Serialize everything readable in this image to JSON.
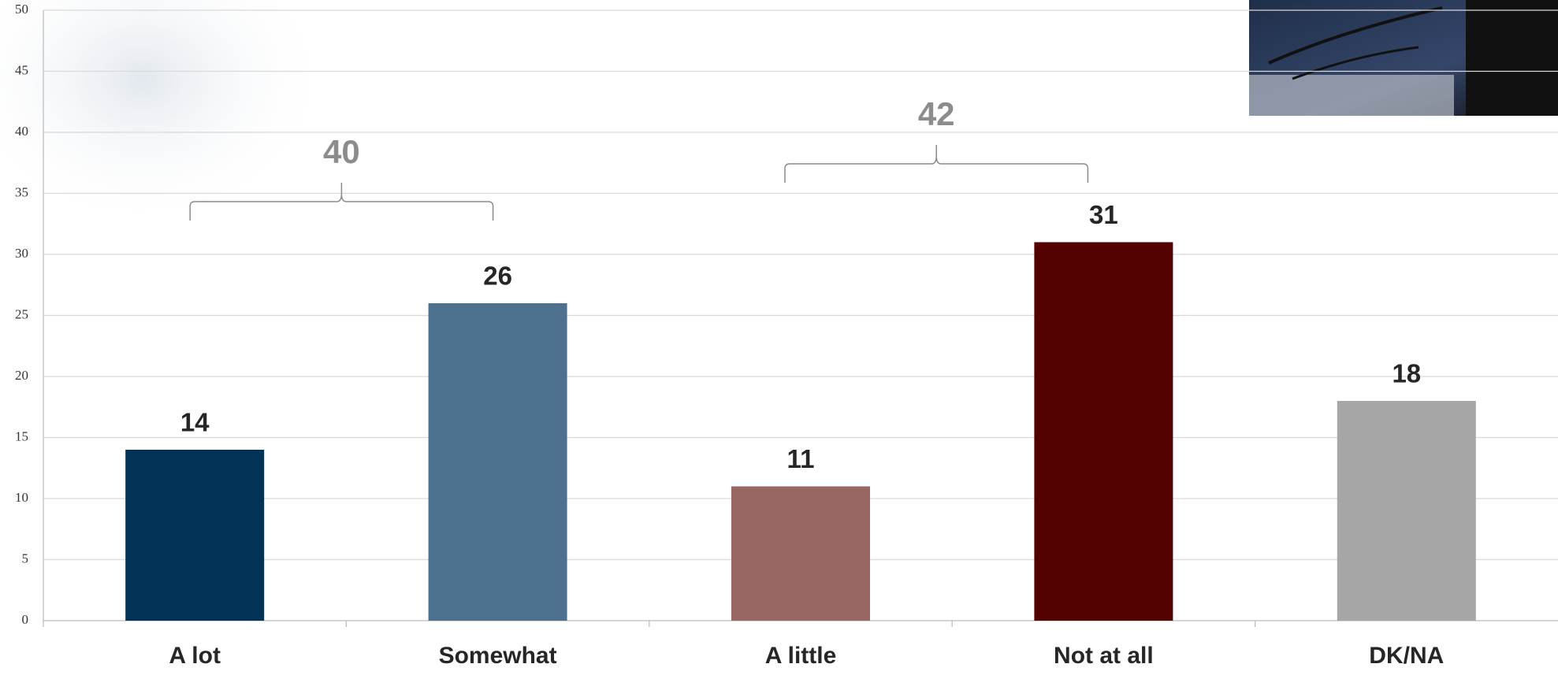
{
  "chart_data": {
    "type": "bar",
    "categories": [
      "A lot",
      "Somewhat",
      "A little",
      "Not at all",
      "DK/NA"
    ],
    "values": [
      14,
      26,
      11,
      31,
      18
    ],
    "colors": [
      "#003356",
      "#4d708e",
      "#996666",
      "#520000",
      "#a6a6a6"
    ],
    "ylim": [
      0,
      50
    ],
    "yticks": [
      0,
      5,
      10,
      15,
      20,
      25,
      30,
      35,
      40,
      45,
      50
    ],
    "grid": true,
    "brackets": [
      {
        "value": 40
      },
      {
        "value": 42
      }
    ]
  }
}
